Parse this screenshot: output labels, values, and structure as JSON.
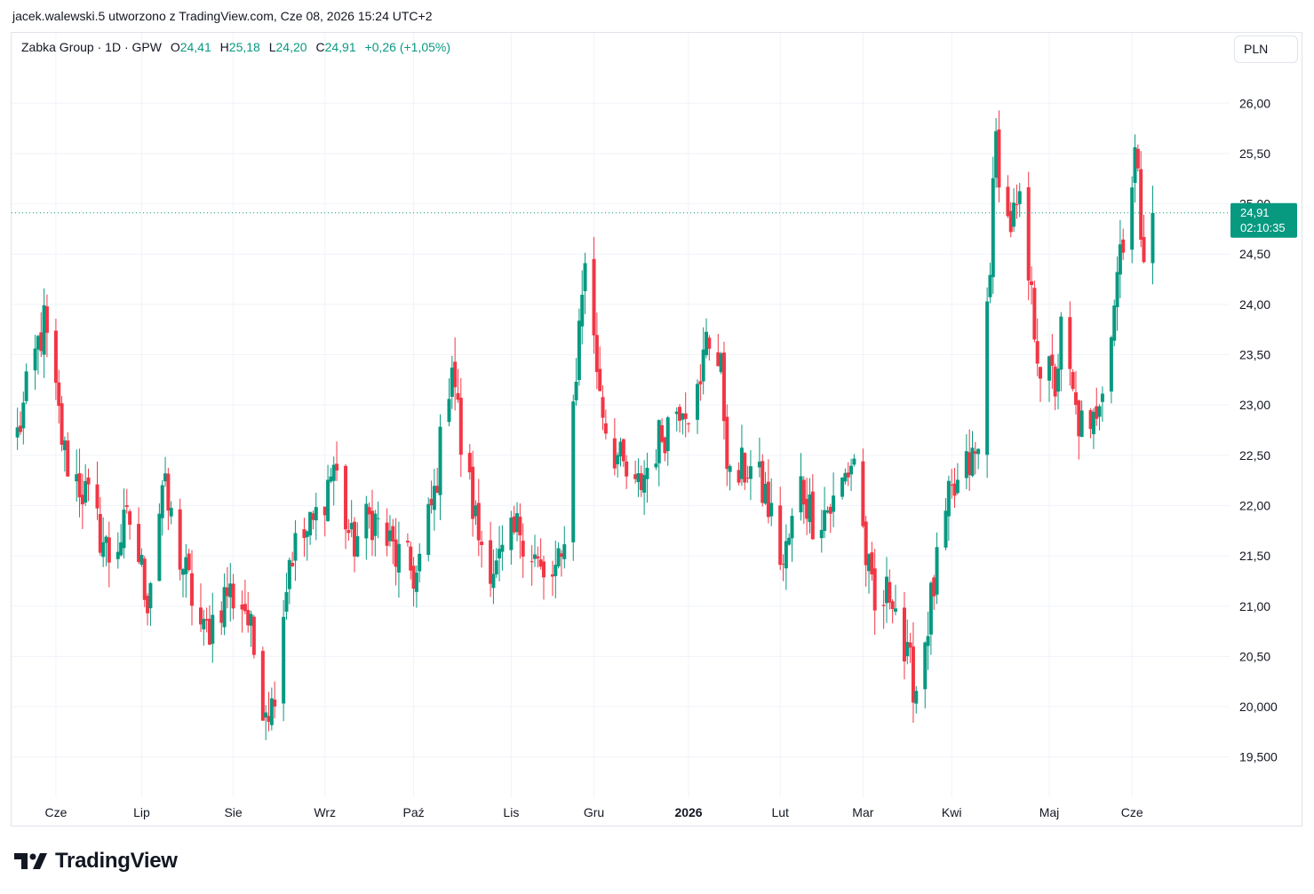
{
  "header": {
    "attribution": "jacek.walewski.5 utworzono z TradingView.com, Cze 08, 2026 15:24 UTC+2"
  },
  "legend": {
    "symbol": "Zabka Group · 1D · GPW",
    "open_label": "O",
    "open_value": "24,41",
    "high_label": "H",
    "high_value": "25,18",
    "low_label": "L",
    "low_value": "24,20",
    "close_label": "C",
    "close_value": "24,91",
    "change": "+0,26 (+1,05%)"
  },
  "currency_button": {
    "label": "PLN"
  },
  "price_badge": {
    "price": "24,91",
    "countdown": "02:10:35"
  },
  "brand": {
    "name": "TradingView",
    "logo_icon": "tradingview-logo-icon"
  },
  "colors": {
    "up": "#089981",
    "down": "#f23645",
    "grid": "#f0f3fa",
    "text": "#131722"
  },
  "chart_data": {
    "type": "candlestick",
    "currency": "PLN",
    "y_ticks": [
      "19,500",
      "20,000",
      "20,50",
      "21,00",
      "21,50",
      "22,00",
      "22,50",
      "23,00",
      "23,50",
      "24,00",
      "24,50",
      "25,00",
      "25,50",
      "26,00"
    ],
    "y_tick_values": [
      19.5,
      20.0,
      20.5,
      21.0,
      21.5,
      22.0,
      22.5,
      23.0,
      23.5,
      24.0,
      24.5,
      25.0,
      25.5,
      26.0
    ],
    "ylim": [
      19.1,
      26.7
    ],
    "x_ticks": [
      {
        "label": "Cze",
        "date": "2025-06-02",
        "bold": false
      },
      {
        "label": "Lip",
        "date": "2025-07-01",
        "bold": false
      },
      {
        "label": "Sie",
        "date": "2025-08-01",
        "bold": false
      },
      {
        "label": "Wrz",
        "date": "2025-09-01",
        "bold": false
      },
      {
        "label": "Paź",
        "date": "2025-10-01",
        "bold": false
      },
      {
        "label": "Lis",
        "date": "2025-11-03",
        "bold": false
      },
      {
        "label": "Gru",
        "date": "2025-12-01",
        "bold": false
      },
      {
        "label": "2026",
        "date": "2026-01-02",
        "bold": true
      },
      {
        "label": "Lut",
        "date": "2026-02-02",
        "bold": false
      },
      {
        "label": "Mar",
        "date": "2026-03-02",
        "bold": false
      },
      {
        "label": "Kwi",
        "date": "2026-04-01",
        "bold": false
      },
      {
        "label": "Maj",
        "date": "2026-05-04",
        "bold": false
      },
      {
        "label": "Cze",
        "date": "2026-06-01",
        "bold": false
      }
    ],
    "last_price": 24.91,
    "anchors": [
      [
        "2025-05-20",
        22.7
      ],
      [
        "2025-05-27",
        23.6
      ],
      [
        "2025-05-29",
        23.8
      ],
      [
        "2025-06-05",
        22.5
      ],
      [
        "2025-06-12",
        22.1
      ],
      [
        "2025-06-20",
        21.5
      ],
      [
        "2025-06-27",
        21.85
      ],
      [
        "2025-07-03",
        21.1
      ],
      [
        "2025-07-08",
        22.2
      ],
      [
        "2025-07-14",
        21.5
      ],
      [
        "2025-07-22",
        20.7
      ],
      [
        "2025-07-30",
        21.15
      ],
      [
        "2025-08-05",
        21.0
      ],
      [
        "2025-08-11",
        20.1
      ],
      [
        "2025-08-14",
        20.0
      ],
      [
        "2025-08-20",
        21.5
      ],
      [
        "2025-08-28",
        21.8
      ],
      [
        "2025-09-04",
        22.4
      ],
      [
        "2025-09-10",
        21.6
      ],
      [
        "2025-09-17",
        21.9
      ],
      [
        "2025-09-25",
        21.5
      ],
      [
        "2025-10-02",
        21.3
      ],
      [
        "2025-10-08",
        22.1
      ],
      [
        "2025-10-14",
        23.5
      ],
      [
        "2025-10-17",
        22.6
      ],
      [
        "2025-10-23",
        21.7
      ],
      [
        "2025-10-29",
        21.35
      ],
      [
        "2025-11-06",
        21.8
      ],
      [
        "2025-11-11",
        21.5
      ],
      [
        "2025-11-14",
        21.2
      ],
      [
        "2025-11-20",
        21.4
      ],
      [
        "2025-11-24",
        23.0
      ],
      [
        "2025-11-28",
        24.5
      ],
      [
        "2025-12-01",
        23.6
      ],
      [
        "2025-12-05",
        22.8
      ],
      [
        "2025-12-10",
        22.4
      ],
      [
        "2025-12-15",
        22.1
      ],
      [
        "2025-12-22",
        22.6
      ],
      [
        "2025-12-31",
        23.1
      ],
      [
        "2026-01-02",
        23.0
      ],
      [
        "2026-01-06",
        23.1
      ],
      [
        "2026-01-08",
        23.8
      ],
      [
        "2026-01-13",
        23.3
      ],
      [
        "2026-01-16",
        22.2
      ],
      [
        "2026-01-22",
        22.4
      ],
      [
        "2026-01-28",
        22.1
      ],
      [
        "2026-02-03",
        21.4
      ],
      [
        "2026-02-09",
        22.2
      ],
      [
        "2026-02-13",
        21.9
      ],
      [
        "2026-02-20",
        22.0
      ],
      [
        "2026-02-27",
        22.5
      ],
      [
        "2026-03-03",
        21.5
      ],
      [
        "2026-03-06",
        20.9
      ],
      [
        "2026-03-12",
        21.2
      ],
      [
        "2026-03-16",
        20.5
      ],
      [
        "2026-03-20",
        20.2
      ],
      [
        "2026-03-26",
        21.2
      ],
      [
        "2026-03-31",
        22.0
      ],
      [
        "2026-04-07",
        22.4
      ],
      [
        "2026-04-10",
        22.5
      ],
      [
        "2026-04-14",
        24.5
      ],
      [
        "2026-04-16",
        25.6
      ],
      [
        "2026-04-20",
        24.8
      ],
      [
        "2026-04-24",
        24.9
      ],
      [
        "2026-04-28",
        24.0
      ],
      [
        "2026-05-01",
        23.4
      ],
      [
        "2026-05-06",
        23.2
      ],
      [
        "2026-05-08",
        23.7
      ],
      [
        "2026-05-13",
        22.9
      ],
      [
        "2026-05-18",
        22.6
      ],
      [
        "2026-05-20",
        23.0
      ],
      [
        "2026-05-25",
        23.8
      ],
      [
        "2026-05-28",
        24.6
      ],
      [
        "2026-05-31",
        25.0
      ],
      [
        "2026-06-02",
        25.5
      ],
      [
        "2026-06-04",
        24.8
      ],
      [
        "2026-06-05",
        24.65
      ],
      [
        "2026-06-08",
        24.91
      ]
    ],
    "x_range": [
      "2025-05-18",
      "2026-07-04"
    ],
    "last_candle": {
      "date": "2026-06-08",
      "open": 24.41,
      "high": 25.18,
      "low": 24.2,
      "close": 24.91
    }
  }
}
